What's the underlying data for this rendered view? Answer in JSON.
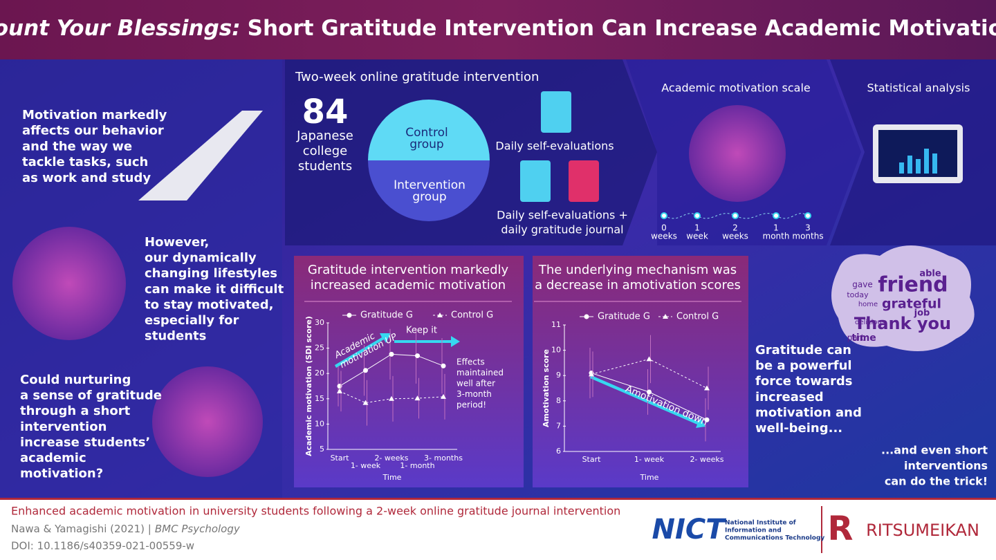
{
  "header": {
    "title_lead": "Count Your Blessings:",
    "title_rest": "Short Gratitude Intervention Can Increase Academic Motivation"
  },
  "intro": {
    "p1": [
      "Motivation markedly",
      "affects our behavior",
      "and the way we",
      "tackle tasks, such",
      "as work and study"
    ],
    "p2": [
      "However,",
      "our dynamically",
      "changing lifestyles",
      "can make it difficult",
      "to stay motivated,",
      "especially for",
      "students"
    ],
    "p3": [
      "Could nurturing",
      "a sense of gratitude",
      "through a short",
      "intervention",
      "increase students’",
      "academic",
      "motivation?"
    ]
  },
  "method": {
    "heading": "Two-week online gratitude intervention",
    "count": "84",
    "participants": [
      "Japanese",
      "college",
      "students"
    ],
    "control": [
      "Control",
      "group"
    ],
    "intervention": [
      "Intervention",
      "group"
    ],
    "control_task": "Daily self-evaluations",
    "intervention_task": [
      "Daily self-evaluations +",
      "daily gratitude journal"
    ],
    "scale_heading": "Academic motivation scale",
    "timeline": [
      [
        "0",
        "weeks"
      ],
      [
        "1",
        "week"
      ],
      [
        "2",
        "weeks"
      ],
      [
        "1",
        "month"
      ],
      [
        "3",
        "months"
      ]
    ],
    "analysis_heading": "Statistical analysis"
  },
  "chart_data": [
    {
      "type": "line",
      "title": [
        "Gratitude intervention markedly",
        "increased academic motivation"
      ],
      "x_label": "Time",
      "y_label": "Academic motivation (SDI score)",
      "categories": [
        "Start",
        "1- week",
        "2- weeks",
        "1- month",
        "3- months"
      ],
      "series": [
        {
          "name": "Gratitude G",
          "color": "#ffffff",
          "marker": "circle",
          "line_style": "solid",
          "values": [
            17.5,
            20.6,
            23.8,
            23.5,
            21.5
          ],
          "errors": [
            4,
            5,
            5,
            5.5,
            5.5
          ]
        },
        {
          "name": "Control G",
          "color": "#ffffff",
          "marker": "triangle",
          "line_style": "dashed",
          "values": [
            16.5,
            14.2,
            15,
            15.1,
            15.4
          ],
          "errors": [
            4,
            4.5,
            4.5,
            4,
            4.5
          ]
        }
      ],
      "ylim": [
        5,
        30
      ],
      "yticks": [
        5,
        10,
        15,
        20,
        25,
        30
      ],
      "annotations": {
        "rise": [
          "Academic",
          "motivation  UP"
        ],
        "keep": "Keep it",
        "note": [
          "Effects",
          "maintained",
          "well after",
          "3-month",
          "period!"
        ]
      }
    },
    {
      "type": "line",
      "title": [
        "The underlying mechanism was",
        "a decrease in amotivation scores"
      ],
      "x_label": "Time",
      "y_label": "Amotivation score",
      "categories": [
        "Start",
        "1- week",
        "2- weeks"
      ],
      "series": [
        {
          "name": "Gratitude G",
          "color": "#ffffff",
          "marker": "circle",
          "line_style": "solid",
          "values": [
            9.1,
            8.35,
            7.25
          ],
          "errors": [
            1,
            0.9,
            0.85
          ]
        },
        {
          "name": "Control G",
          "color": "#ffffff",
          "marker": "triangle",
          "line_style": "dashed",
          "values": [
            9.05,
            9.65,
            8.5
          ],
          "errors": [
            0.9,
            0.95,
            0.85
          ]
        }
      ],
      "ylim": [
        6,
        11
      ],
      "yticks": [
        6,
        7,
        8,
        9,
        10,
        11
      ],
      "annotations": {
        "drop": "Amotivation down"
      }
    }
  ],
  "conclusion": {
    "words": [
      "friend",
      "grateful",
      "Thank you",
      "time",
      "job",
      "part",
      "able",
      "gave",
      "today",
      "delicious",
      "home"
    ],
    "p1": [
      "Gratitude can",
      "be a powerful",
      "force towards",
      "increased",
      "motivation and",
      "well-being..."
    ],
    "p2": [
      "...and even short",
      "interventions",
      "can do the trick!"
    ]
  },
  "footer": {
    "summary": "Enhanced academic motivation in university students following a 2-week online gratitude journal intervention",
    "authors": "Nawa & Yamagishi (2021) |",
    "journal": "BMC Psychology",
    "doi": "DOI: 10.1186/s40359-021-00559-w",
    "nict": "NICT",
    "nict_name": [
      "National Institute of",
      "Information and",
      "Communications Technology"
    ],
    "r_logo": "R",
    "ritsumeikan": "RITSUMEIKAN"
  }
}
